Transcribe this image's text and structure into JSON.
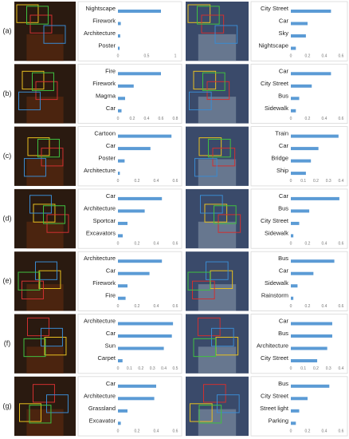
{
  "row_labels": [
    "(a)",
    "(b)",
    "(c)",
    "(d)",
    "(e)",
    "(f)",
    "(g)"
  ],
  "chart_data": [
    {
      "type": "bar",
      "orientation": "horizontal",
      "color": "#5b9bd5",
      "categories": [
        "Nightscape",
        "Firework",
        "Architecture",
        "Poster"
      ],
      "values": [
        0.75,
        0.05,
        0.04,
        0.03
      ],
      "xlim": [
        0,
        1
      ],
      "xticks": [
        0,
        0.5,
        1
      ]
    },
    {
      "type": "bar",
      "orientation": "horizontal",
      "color": "#5b9bd5",
      "categories": [
        "City Street",
        "Car",
        "Sky",
        "Nightscape"
      ],
      "values": [
        0.48,
        0.2,
        0.18,
        0.06
      ],
      "xlim": [
        0,
        0.6
      ],
      "xticks": [
        0,
        0.2,
        0.4,
        0.6
      ]
    },
    {
      "type": "bar",
      "orientation": "horizontal",
      "color": "#5b9bd5",
      "categories": [
        "Fire",
        "Firework",
        "Magma",
        "Car"
      ],
      "values": [
        0.6,
        0.22,
        0.1,
        0.05
      ],
      "xlim": [
        0,
        0.8
      ],
      "xticks": [
        0,
        0.2,
        0.4,
        0.6,
        0.8
      ]
    },
    {
      "type": "bar",
      "orientation": "horizontal",
      "color": "#5b9bd5",
      "categories": [
        "Car",
        "City Street",
        "Bus",
        "Sidewalk"
      ],
      "values": [
        0.48,
        0.25,
        0.1,
        0.06
      ],
      "xlim": [
        0,
        0.6
      ],
      "xticks": [
        0,
        0.2,
        0.4,
        0.6
      ]
    },
    {
      "type": "bar",
      "orientation": "horizontal",
      "color": "#5b9bd5",
      "categories": [
        "Cartoon",
        "Car",
        "Poster",
        "Architecture"
      ],
      "values": [
        0.56,
        0.34,
        0.07,
        0.02
      ],
      "xlim": [
        0,
        0.6
      ],
      "xticks": [
        0,
        0.2,
        0.4,
        0.6
      ]
    },
    {
      "type": "bar",
      "orientation": "horizontal",
      "color": "#5b9bd5",
      "categories": [
        "Train",
        "Car",
        "Bridge",
        "Ship"
      ],
      "values": [
        0.38,
        0.22,
        0.16,
        0.12
      ],
      "xlim": [
        0,
        0.4
      ],
      "xticks": [
        0,
        0.1,
        0.2,
        0.3,
        0.4
      ]
    },
    {
      "type": "bar",
      "orientation": "horizontal",
      "color": "#5b9bd5",
      "categories": [
        "Car",
        "Architecture",
        "Sportcar",
        "Excavators"
      ],
      "values": [
        0.46,
        0.28,
        0.1,
        0.05
      ],
      "xlim": [
        0,
        0.6
      ],
      "xticks": [
        0,
        0.2,
        0.4,
        0.6
      ]
    },
    {
      "type": "bar",
      "orientation": "horizontal",
      "color": "#5b9bd5",
      "categories": [
        "Car",
        "Bus",
        "City Street",
        "Sidewalk"
      ],
      "values": [
        0.58,
        0.22,
        0.1,
        0.03
      ],
      "xlim": [
        0,
        0.6
      ],
      "xticks": [
        0,
        0.2,
        0.4,
        0.6
      ]
    },
    {
      "type": "bar",
      "orientation": "horizontal",
      "color": "#5b9bd5",
      "categories": [
        "Architecture",
        "Car",
        "Firework",
        "Fire"
      ],
      "values": [
        0.46,
        0.33,
        0.1,
        0.08
      ],
      "xlim": [
        0,
        0.6
      ],
      "xticks": [
        0,
        0.2,
        0.4,
        0.6
      ]
    },
    {
      "type": "bar",
      "orientation": "horizontal",
      "color": "#5b9bd5",
      "categories": [
        "Bus",
        "Car",
        "Sidewalk",
        "Rainstorm"
      ],
      "values": [
        0.52,
        0.27,
        0.08,
        0.03
      ],
      "xlim": [
        0,
        0.6
      ],
      "xticks": [
        0,
        0.2,
        0.4,
        0.6
      ]
    },
    {
      "type": "bar",
      "orientation": "horizontal",
      "color": "#5b9bd5",
      "categories": [
        "Architecture",
        "Car",
        "Sun",
        "Carpet"
      ],
      "values": [
        0.48,
        0.47,
        0.4,
        0.04
      ],
      "xlim": [
        0,
        0.5
      ],
      "xticks": [
        0,
        0.1,
        0.2,
        0.3,
        0.4,
        0.5
      ]
    },
    {
      "type": "bar",
      "orientation": "horizontal",
      "color": "#5b9bd5",
      "categories": [
        "Car",
        "Bus",
        "Architecture",
        "City Street"
      ],
      "values": [
        0.33,
        0.33,
        0.29,
        0.21
      ],
      "xlim": [
        0,
        0.4
      ],
      "xticks": [
        0,
        0.1,
        0.2,
        0.3,
        0.4
      ]
    },
    {
      "type": "bar",
      "orientation": "horizontal",
      "color": "#5b9bd5",
      "categories": [
        "Car",
        "Architecture",
        "Grassland",
        "Excavator"
      ],
      "values": [
        0.4,
        0.38,
        0.1,
        0.03
      ],
      "xlim": [
        0,
        0.6
      ],
      "xticks": [
        0,
        0.2,
        0.4,
        0.6
      ]
    },
    {
      "type": "bar",
      "orientation": "horizontal",
      "color": "#5b9bd5",
      "categories": [
        "Bus",
        "City Street",
        "Street light",
        "Parking"
      ],
      "values": [
        0.46,
        0.2,
        0.1,
        0.06
      ],
      "xlim": [
        0,
        0.6
      ],
      "xticks": [
        0,
        0.2,
        0.4,
        0.6
      ]
    }
  ]
}
